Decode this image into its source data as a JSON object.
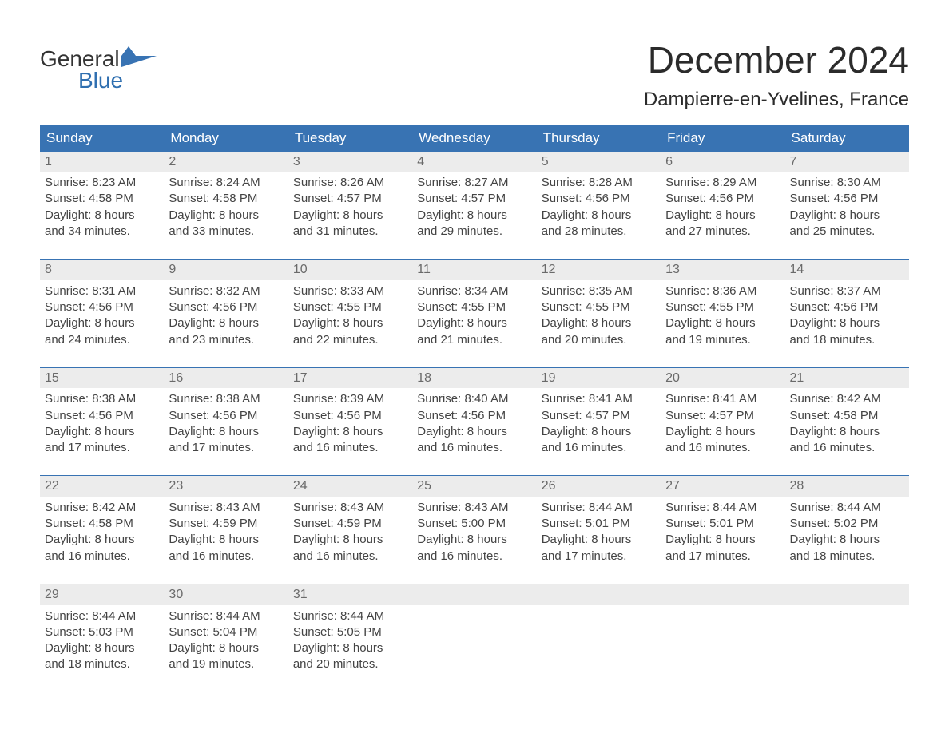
{
  "logo": {
    "top": "General",
    "bottom": "Blue",
    "mark_color": "#3873b3"
  },
  "title": "December 2024",
  "location": "Dampierre-en-Yvelines, France",
  "colors": {
    "header_bg": "#3873b3",
    "header_text": "#ffffff",
    "daynum_bg": "#ececec",
    "daynum_text": "#6a6a6a",
    "body_text": "#444444",
    "week_border": "#3873b3",
    "page_bg": "#ffffff"
  },
  "typography": {
    "title_fontsize": 46,
    "location_fontsize": 24,
    "dow_fontsize": 17,
    "daynum_fontsize": 16,
    "body_fontsize": 15,
    "logo_fontsize": 28
  },
  "days_of_week": [
    "Sunday",
    "Monday",
    "Tuesday",
    "Wednesday",
    "Thursday",
    "Friday",
    "Saturday"
  ],
  "weeks": [
    [
      {
        "n": "1",
        "sunrise": "Sunrise: 8:23 AM",
        "sunset": "Sunset: 4:58 PM",
        "d1": "Daylight: 8 hours",
        "d2": "and 34 minutes."
      },
      {
        "n": "2",
        "sunrise": "Sunrise: 8:24 AM",
        "sunset": "Sunset: 4:58 PM",
        "d1": "Daylight: 8 hours",
        "d2": "and 33 minutes."
      },
      {
        "n": "3",
        "sunrise": "Sunrise: 8:26 AM",
        "sunset": "Sunset: 4:57 PM",
        "d1": "Daylight: 8 hours",
        "d2": "and 31 minutes."
      },
      {
        "n": "4",
        "sunrise": "Sunrise: 8:27 AM",
        "sunset": "Sunset: 4:57 PM",
        "d1": "Daylight: 8 hours",
        "d2": "and 29 minutes."
      },
      {
        "n": "5",
        "sunrise": "Sunrise: 8:28 AM",
        "sunset": "Sunset: 4:56 PM",
        "d1": "Daylight: 8 hours",
        "d2": "and 28 minutes."
      },
      {
        "n": "6",
        "sunrise": "Sunrise: 8:29 AM",
        "sunset": "Sunset: 4:56 PM",
        "d1": "Daylight: 8 hours",
        "d2": "and 27 minutes."
      },
      {
        "n": "7",
        "sunrise": "Sunrise: 8:30 AM",
        "sunset": "Sunset: 4:56 PM",
        "d1": "Daylight: 8 hours",
        "d2": "and 25 minutes."
      }
    ],
    [
      {
        "n": "8",
        "sunrise": "Sunrise: 8:31 AM",
        "sunset": "Sunset: 4:56 PM",
        "d1": "Daylight: 8 hours",
        "d2": "and 24 minutes."
      },
      {
        "n": "9",
        "sunrise": "Sunrise: 8:32 AM",
        "sunset": "Sunset: 4:56 PM",
        "d1": "Daylight: 8 hours",
        "d2": "and 23 minutes."
      },
      {
        "n": "10",
        "sunrise": "Sunrise: 8:33 AM",
        "sunset": "Sunset: 4:55 PM",
        "d1": "Daylight: 8 hours",
        "d2": "and 22 minutes."
      },
      {
        "n": "11",
        "sunrise": "Sunrise: 8:34 AM",
        "sunset": "Sunset: 4:55 PM",
        "d1": "Daylight: 8 hours",
        "d2": "and 21 minutes."
      },
      {
        "n": "12",
        "sunrise": "Sunrise: 8:35 AM",
        "sunset": "Sunset: 4:55 PM",
        "d1": "Daylight: 8 hours",
        "d2": "and 20 minutes."
      },
      {
        "n": "13",
        "sunrise": "Sunrise: 8:36 AM",
        "sunset": "Sunset: 4:55 PM",
        "d1": "Daylight: 8 hours",
        "d2": "and 19 minutes."
      },
      {
        "n": "14",
        "sunrise": "Sunrise: 8:37 AM",
        "sunset": "Sunset: 4:56 PM",
        "d1": "Daylight: 8 hours",
        "d2": "and 18 minutes."
      }
    ],
    [
      {
        "n": "15",
        "sunrise": "Sunrise: 8:38 AM",
        "sunset": "Sunset: 4:56 PM",
        "d1": "Daylight: 8 hours",
        "d2": "and 17 minutes."
      },
      {
        "n": "16",
        "sunrise": "Sunrise: 8:38 AM",
        "sunset": "Sunset: 4:56 PM",
        "d1": "Daylight: 8 hours",
        "d2": "and 17 minutes."
      },
      {
        "n": "17",
        "sunrise": "Sunrise: 8:39 AM",
        "sunset": "Sunset: 4:56 PM",
        "d1": "Daylight: 8 hours",
        "d2": "and 16 minutes."
      },
      {
        "n": "18",
        "sunrise": "Sunrise: 8:40 AM",
        "sunset": "Sunset: 4:56 PM",
        "d1": "Daylight: 8 hours",
        "d2": "and 16 minutes."
      },
      {
        "n": "19",
        "sunrise": "Sunrise: 8:41 AM",
        "sunset": "Sunset: 4:57 PM",
        "d1": "Daylight: 8 hours",
        "d2": "and 16 minutes."
      },
      {
        "n": "20",
        "sunrise": "Sunrise: 8:41 AM",
        "sunset": "Sunset: 4:57 PM",
        "d1": "Daylight: 8 hours",
        "d2": "and 16 minutes."
      },
      {
        "n": "21",
        "sunrise": "Sunrise: 8:42 AM",
        "sunset": "Sunset: 4:58 PM",
        "d1": "Daylight: 8 hours",
        "d2": "and 16 minutes."
      }
    ],
    [
      {
        "n": "22",
        "sunrise": "Sunrise: 8:42 AM",
        "sunset": "Sunset: 4:58 PM",
        "d1": "Daylight: 8 hours",
        "d2": "and 16 minutes."
      },
      {
        "n": "23",
        "sunrise": "Sunrise: 8:43 AM",
        "sunset": "Sunset: 4:59 PM",
        "d1": "Daylight: 8 hours",
        "d2": "and 16 minutes."
      },
      {
        "n": "24",
        "sunrise": "Sunrise: 8:43 AM",
        "sunset": "Sunset: 4:59 PM",
        "d1": "Daylight: 8 hours",
        "d2": "and 16 minutes."
      },
      {
        "n": "25",
        "sunrise": "Sunrise: 8:43 AM",
        "sunset": "Sunset: 5:00 PM",
        "d1": "Daylight: 8 hours",
        "d2": "and 16 minutes."
      },
      {
        "n": "26",
        "sunrise": "Sunrise: 8:44 AM",
        "sunset": "Sunset: 5:01 PM",
        "d1": "Daylight: 8 hours",
        "d2": "and 17 minutes."
      },
      {
        "n": "27",
        "sunrise": "Sunrise: 8:44 AM",
        "sunset": "Sunset: 5:01 PM",
        "d1": "Daylight: 8 hours",
        "d2": "and 17 minutes."
      },
      {
        "n": "28",
        "sunrise": "Sunrise: 8:44 AM",
        "sunset": "Sunset: 5:02 PM",
        "d1": "Daylight: 8 hours",
        "d2": "and 18 minutes."
      }
    ],
    [
      {
        "n": "29",
        "sunrise": "Sunrise: 8:44 AM",
        "sunset": "Sunset: 5:03 PM",
        "d1": "Daylight: 8 hours",
        "d2": "and 18 minutes."
      },
      {
        "n": "30",
        "sunrise": "Sunrise: 8:44 AM",
        "sunset": "Sunset: 5:04 PM",
        "d1": "Daylight: 8 hours",
        "d2": "and 19 minutes."
      },
      {
        "n": "31",
        "sunrise": "Sunrise: 8:44 AM",
        "sunset": "Sunset: 5:05 PM",
        "d1": "Daylight: 8 hours",
        "d2": "and 20 minutes."
      },
      {
        "empty": true
      },
      {
        "empty": true
      },
      {
        "empty": true
      },
      {
        "empty": true
      }
    ]
  ]
}
